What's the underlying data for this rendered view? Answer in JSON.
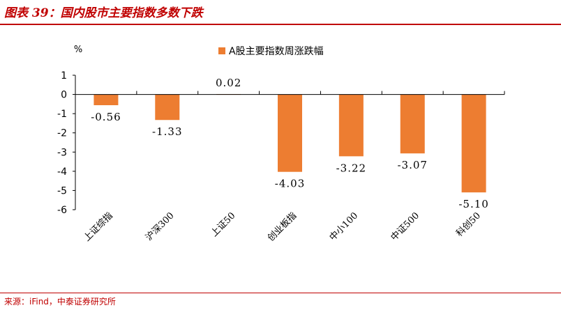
{
  "header": {
    "title": "图表 39：国内股市主要指数多数下跌"
  },
  "footer": {
    "source": "来源：iFind，中泰证券研究所"
  },
  "colors": {
    "bar": "#ED7D31",
    "title": "#C00000",
    "axis": "#000000"
  },
  "chart_data": {
    "type": "bar",
    "ylabel": "%",
    "ylim": [
      -6,
      1
    ],
    "yticks": [
      1,
      0,
      -1,
      -2,
      -3,
      -4,
      -5,
      -6
    ],
    "legend": "top",
    "grid": false,
    "categories": [
      "上证综指",
      "沪深300",
      "上证50",
      "创业板指",
      "中小100",
      "中证500",
      "科创50"
    ],
    "series": [
      {
        "name": "A股主要指数周涨跌幅",
        "values": [
          -0.56,
          -1.33,
          0.02,
          -4.03,
          -3.22,
          -3.07,
          -5.1
        ],
        "labels": [
          "-0.56",
          "-1.33",
          "0.02",
          "-4.03",
          "-3.22",
          "-3.07",
          "-5.10"
        ]
      }
    ]
  }
}
